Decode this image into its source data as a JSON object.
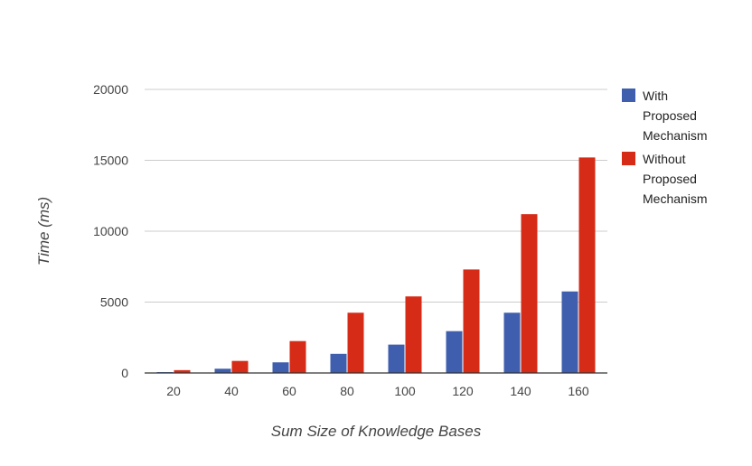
{
  "chart_data": {
    "type": "bar",
    "title": "",
    "xlabel": "Sum Size of Knowledge Bases",
    "ylabel": "Time (ms)",
    "categories": [
      "20",
      "40",
      "60",
      "80",
      "100",
      "120",
      "140",
      "160"
    ],
    "ylim": [
      0,
      20000
    ],
    "yticks": [
      "0",
      "5000",
      "10000",
      "15000",
      "20000"
    ],
    "grid": true,
    "legend_position": "right",
    "series": [
      {
        "name": "With Proposed Mechanism",
        "name_lines": [
          "With",
          "Proposed",
          "Mechanism"
        ],
        "color": "#3f5fae",
        "values": [
          60,
          300,
          750,
          1350,
          2000,
          2950,
          4250,
          5750
        ]
      },
      {
        "name": "Without Proposed Mechanism",
        "name_lines": [
          "Without",
          "Proposed",
          "Mechanism"
        ],
        "color": "#d62b16",
        "values": [
          200,
          850,
          2250,
          4250,
          5400,
          7300,
          11200,
          15200
        ]
      }
    ]
  }
}
